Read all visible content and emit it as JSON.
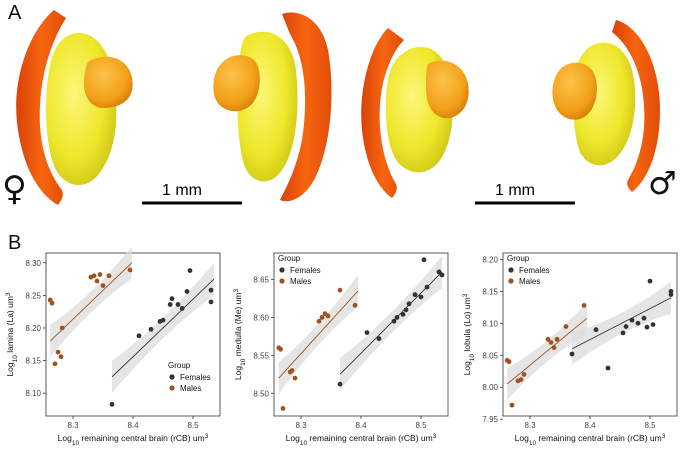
{
  "panel_a": {
    "label": "A",
    "scale_left": "1 mm",
    "scale_right": "1 mm",
    "female_symbol": "♀",
    "male_symbol": "♂",
    "colors": {
      "lamina": "#f05a0f",
      "medulla": "#f2ec2a",
      "lobula": "#f7a21a"
    }
  },
  "panel_b": {
    "label": "B"
  },
  "colors": {
    "females": "#333333",
    "males": "#a0521f",
    "band": "#dcdcdc"
  },
  "chart_data": [
    {
      "type": "scatter",
      "title": "",
      "xlabel_prefix": "Log",
      "xlabel_sub": "10",
      "xlabel_rest": " remaining central brain (rCB) um",
      "xlabel_sup": "3",
      "ylabel_prefix": "Log",
      "ylabel_sub": "10",
      "ylabel_rest": " lamina (La) um",
      "ylabel_sup": "3",
      "xlim": [
        8.255,
        8.545
      ],
      "ylim": [
        8.065,
        8.315
      ],
      "x_ticks": [
        "8.3",
        "8.4",
        "8.5"
      ],
      "x_tick_values": [
        8.3,
        8.4,
        8.5
      ],
      "y_ticks": [
        "8.10",
        "8.15",
        "8.20",
        "8.25",
        "8.30"
      ],
      "y_tick_values": [
        8.1,
        8.15,
        8.2,
        8.25,
        8.3
      ],
      "legend": {
        "title": "Group",
        "position": "bottom-right",
        "entries": [
          "Females",
          "Males"
        ]
      },
      "series": [
        {
          "name": "Females",
          "x": [
            8.365,
            8.41,
            8.43,
            8.445,
            8.45,
            8.462,
            8.465,
            8.475,
            8.482,
            8.49,
            8.495,
            8.53,
            8.53
          ],
          "y": [
            8.083,
            8.188,
            8.198,
            8.21,
            8.212,
            8.236,
            8.245,
            8.236,
            8.23,
            8.256,
            8.288,
            8.24,
            8.258
          ],
          "fit": {
            "x": [
              8.365,
              8.535
            ],
            "y": [
              8.125,
              8.275
            ]
          }
        },
        {
          "name": "Males",
          "x": [
            8.262,
            8.265,
            8.27,
            8.275,
            8.28,
            8.282,
            8.33,
            8.335,
            8.34,
            8.345,
            8.35,
            8.36,
            8.395
          ],
          "y": [
            8.243,
            8.238,
            8.145,
            8.163,
            8.156,
            8.2,
            8.278,
            8.28,
            8.272,
            8.282,
            8.265,
            8.28,
            8.289
          ],
          "fit": {
            "x": [
              8.262,
              8.398
            ],
            "y": [
              8.18,
              8.3
            ]
          }
        }
      ]
    },
    {
      "type": "scatter",
      "title": "",
      "xlabel_prefix": "Log",
      "xlabel_sub": "10",
      "xlabel_rest": " remaining central brain (rCB) um",
      "xlabel_sup": "3",
      "ylabel_prefix": "Log",
      "ylabel_sub": "10",
      "ylabel_rest": " medulla (Me) um",
      "ylabel_sup": "3",
      "xlim": [
        8.255,
        8.545
      ],
      "ylim": [
        8.47,
        8.685
      ],
      "x_ticks": [
        "8.3",
        "8.4",
        "8.5"
      ],
      "x_tick_values": [
        8.3,
        8.4,
        8.5
      ],
      "y_ticks": [
        "8.50",
        "8.55",
        "8.60",
        "8.65"
      ],
      "y_tick_values": [
        8.5,
        8.55,
        8.6,
        8.65
      ],
      "legend": {
        "title": "Group",
        "position": "top-left",
        "entries": [
          "Females",
          "Males"
        ]
      },
      "series": [
        {
          "name": "Females",
          "x": [
            8.365,
            8.41,
            8.43,
            8.455,
            8.46,
            8.47,
            8.475,
            8.48,
            8.49,
            8.5,
            8.505,
            8.51,
            8.53,
            8.535
          ],
          "y": [
            8.512,
            8.58,
            8.572,
            8.595,
            8.6,
            8.604,
            8.61,
            8.618,
            8.63,
            8.627,
            8.676,
            8.64,
            8.66,
            8.656
          ],
          "fit": {
            "x": [
              8.365,
              8.535
            ],
            "y": [
              8.525,
              8.66
            ]
          }
        },
        {
          "name": "Males",
          "x": [
            8.263,
            8.266,
            8.27,
            8.282,
            8.285,
            8.29,
            8.33,
            8.335,
            8.34,
            8.345,
            8.365,
            8.39
          ],
          "y": [
            8.56,
            8.558,
            8.48,
            8.528,
            8.53,
            8.52,
            8.595,
            8.6,
            8.605,
            8.602,
            8.636,
            8.616
          ],
          "fit": {
            "x": [
              8.263,
              8.395
            ],
            "y": [
              8.52,
              8.635
            ]
          }
        }
      ]
    },
    {
      "type": "scatter",
      "title": "",
      "xlabel_prefix": "Log",
      "xlabel_sub": "10",
      "xlabel_rest": " remaining central brain (rCB) um",
      "xlabel_sup": "3",
      "ylabel_prefix": "Log",
      "ylabel_sub": "10",
      "ylabel_rest": " lobula (Lo) um",
      "ylabel_sup": "3",
      "xlim": [
        8.255,
        8.545
      ],
      "ylim": [
        7.955,
        8.21
      ],
      "x_ticks": [
        "8.3",
        "8.4",
        "8.5"
      ],
      "x_tick_values": [
        8.3,
        8.4,
        8.5
      ],
      "y_ticks": [
        "7.95",
        "8.00",
        "8.05",
        "8.10",
        "8.15",
        "8.20"
      ],
      "y_tick_values": [
        7.95,
        8.0,
        8.05,
        8.1,
        8.15,
        8.2
      ],
      "legend": {
        "title": "Group",
        "position": "top-left",
        "entries": [
          "Females",
          "Males"
        ]
      },
      "series": [
        {
          "name": "Females",
          "x": [
            8.37,
            8.41,
            8.43,
            8.455,
            8.46,
            8.47,
            8.48,
            8.49,
            8.495,
            8.5,
            8.505,
            8.535,
            8.535
          ],
          "y": [
            8.052,
            8.09,
            8.03,
            8.085,
            8.095,
            8.105,
            8.1,
            8.108,
            8.094,
            8.166,
            8.098,
            8.145,
            8.15
          ],
          "fit": {
            "x": [
              8.37,
              8.535
            ],
            "y": [
              8.06,
              8.14
            ]
          }
        },
        {
          "name": "Males",
          "x": [
            8.262,
            8.265,
            8.27,
            8.28,
            8.285,
            8.29,
            8.33,
            8.335,
            8.34,
            8.345,
            8.36,
            8.39
          ],
          "y": [
            8.042,
            8.04,
            7.972,
            8.01,
            8.012,
            8.02,
            8.075,
            8.07,
            8.062,
            8.075,
            8.095,
            8.128
          ],
          "fit": {
            "x": [
              8.262,
              8.395
            ],
            "y": [
              8.005,
              8.108
            ]
          }
        }
      ]
    }
  ]
}
